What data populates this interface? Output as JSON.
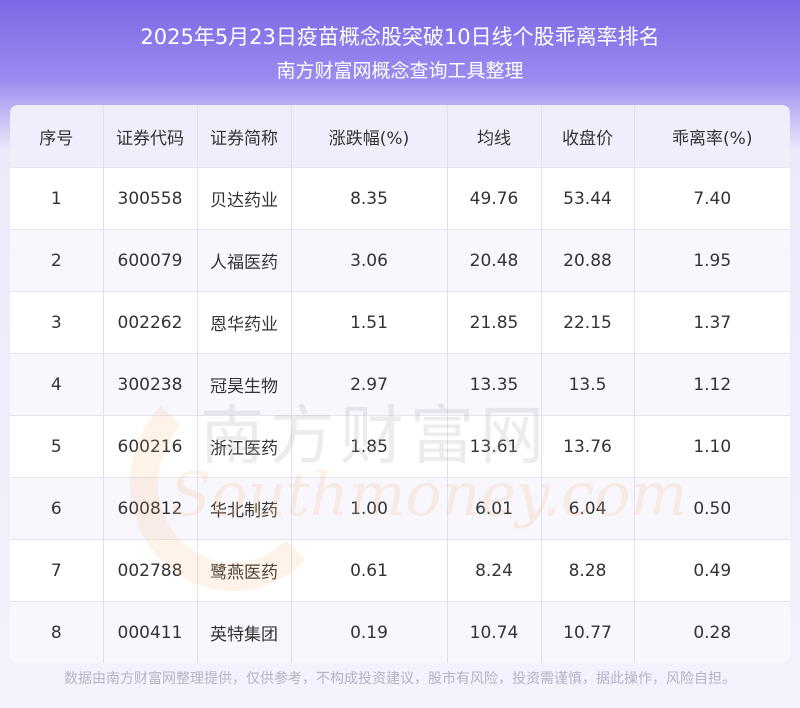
{
  "header": {
    "title": "2025年5月23日疫苗概念股突破10日线个股乖离率排名",
    "subtitle": "南方财富网概念查询工具整理"
  },
  "table": {
    "columns": [
      "序号",
      "证券代码",
      "证券简称",
      "涨跌幅(%)",
      "均线",
      "收盘价",
      "乖离率(%)"
    ],
    "rows": [
      [
        "1",
        "300558",
        "贝达药业",
        "8.35",
        "49.76",
        "53.44",
        "7.40"
      ],
      [
        "2",
        "600079",
        "人福医药",
        "3.06",
        "20.48",
        "20.88",
        "1.95"
      ],
      [
        "3",
        "002262",
        "恩华药业",
        "1.51",
        "21.85",
        "22.15",
        "1.37"
      ],
      [
        "4",
        "300238",
        "冠昊生物",
        "2.97",
        "13.35",
        "13.5",
        "1.12"
      ],
      [
        "5",
        "600216",
        "浙江医药",
        "1.85",
        "13.61",
        "13.76",
        "1.10"
      ],
      [
        "6",
        "600812",
        "华北制药",
        "1.00",
        "6.01",
        "6.04",
        "0.50"
      ],
      [
        "7",
        "002788",
        "鹭燕医药",
        "0.61",
        "8.24",
        "8.28",
        "0.49"
      ],
      [
        "8",
        "000411",
        "英特集团",
        "0.19",
        "10.74",
        "10.77",
        "0.28"
      ]
    ]
  },
  "watermark": {
    "cn": "南方财富网",
    "en": "Southmoney.com"
  },
  "footer": {
    "text": "数据由南方财富网整理提供，仅供参考，不构成投资建议，股市有风险，投资需谨慎，据此操作，风险自担。"
  }
}
